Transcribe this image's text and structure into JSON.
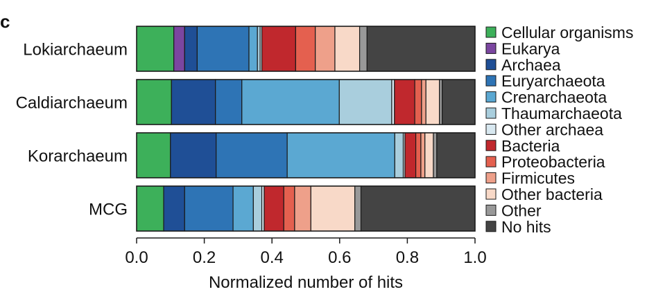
{
  "chart_data": {
    "type": "bar",
    "orientation": "horizontal",
    "stacked": true,
    "panel_label": "c",
    "xlabel": "Normalized number of hits",
    "xlim": [
      0,
      1
    ],
    "xticks": [
      "0.0",
      "0.2",
      "0.4",
      "0.6",
      "0.8",
      "1.0"
    ],
    "categories": [
      "Lokiarchaeum",
      "Caldiarchaeum",
      "Korarchaeum",
      "MCG"
    ],
    "series": [
      {
        "name": "Cellular organisms",
        "color": "#3db05a",
        "values": [
          0.11,
          0.103,
          0.1,
          0.08
        ]
      },
      {
        "name": "Eukarya",
        "color": "#7b46a0",
        "values": [
          0.032,
          0.0,
          0.0,
          0.0
        ]
      },
      {
        "name": "Archaea",
        "color": "#1f4f96",
        "values": [
          0.037,
          0.13,
          0.135,
          0.062
        ]
      },
      {
        "name": "Euryarchaeota",
        "color": "#2e74b5",
        "values": [
          0.153,
          0.078,
          0.21,
          0.143
        ]
      },
      {
        "name": "Crenarchaeota",
        "color": "#5ba8d2",
        "values": [
          0.025,
          0.288,
          0.318,
          0.06
        ]
      },
      {
        "name": "Thaumarchaeota",
        "color": "#a9cedd",
        "values": [
          0.008,
          0.155,
          0.025,
          0.025
        ]
      },
      {
        "name": "Other archaea",
        "color": "#d8e8f0",
        "values": [
          0.005,
          0.008,
          0.005,
          0.007
        ]
      },
      {
        "name": "Bacteria",
        "color": "#c0282d",
        "values": [
          0.1,
          0.06,
          0.032,
          0.058
        ]
      },
      {
        "name": "Proteobacteria",
        "color": "#e4604f",
        "values": [
          0.058,
          0.02,
          0.015,
          0.032
        ]
      },
      {
        "name": "Firmicutes",
        "color": "#eea08a",
        "values": [
          0.058,
          0.013,
          0.012,
          0.048
        ]
      },
      {
        "name": "Other bacteria",
        "color": "#f8d9c8",
        "values": [
          0.073,
          0.04,
          0.025,
          0.13
        ]
      },
      {
        "name": "Other",
        "color": "#999999",
        "values": [
          0.022,
          0.008,
          0.01,
          0.018
        ]
      },
      {
        "name": "No hits",
        "color": "#444444",
        "values": [
          0.319,
          0.097,
          0.113,
          0.337
        ]
      }
    ],
    "legend_position": "right",
    "grid": false
  }
}
